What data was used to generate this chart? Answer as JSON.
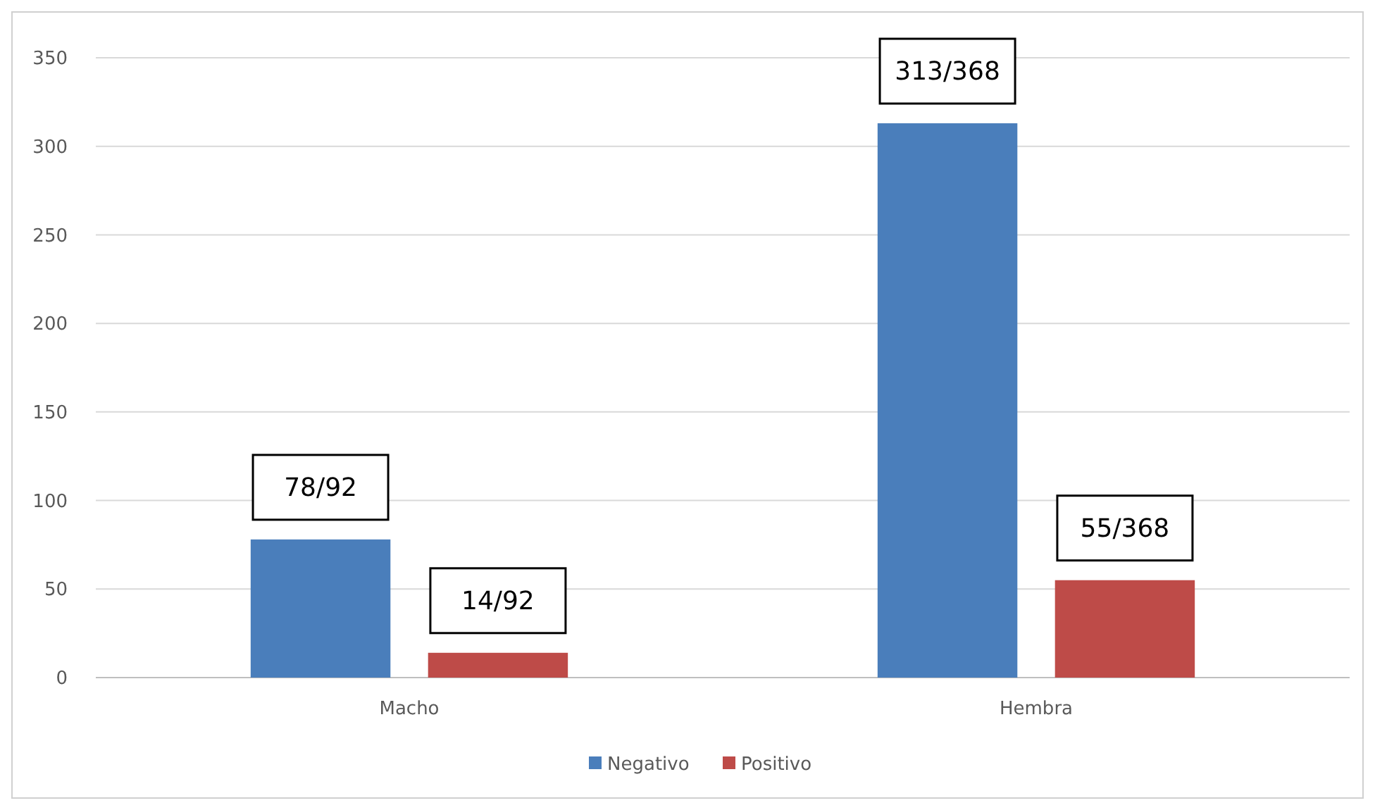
{
  "chart_data": {
    "type": "bar",
    "categories": [
      "Macho",
      "Hembra"
    ],
    "series": [
      {
        "name": "Negativo",
        "color": "#4a7ebb",
        "values": [
          78,
          313
        ],
        "value_labels": [
          "78/92",
          "313/368"
        ]
      },
      {
        "name": "Positivo",
        "color": "#be4b48",
        "values": [
          14,
          55
        ],
        "value_labels": [
          "14/92",
          "55/368"
        ]
      }
    ],
    "ylim": [
      0,
      350
    ],
    "yticks": [
      0,
      50,
      100,
      150,
      200,
      250,
      300,
      350
    ],
    "grid": "y",
    "legend": "bottom"
  }
}
